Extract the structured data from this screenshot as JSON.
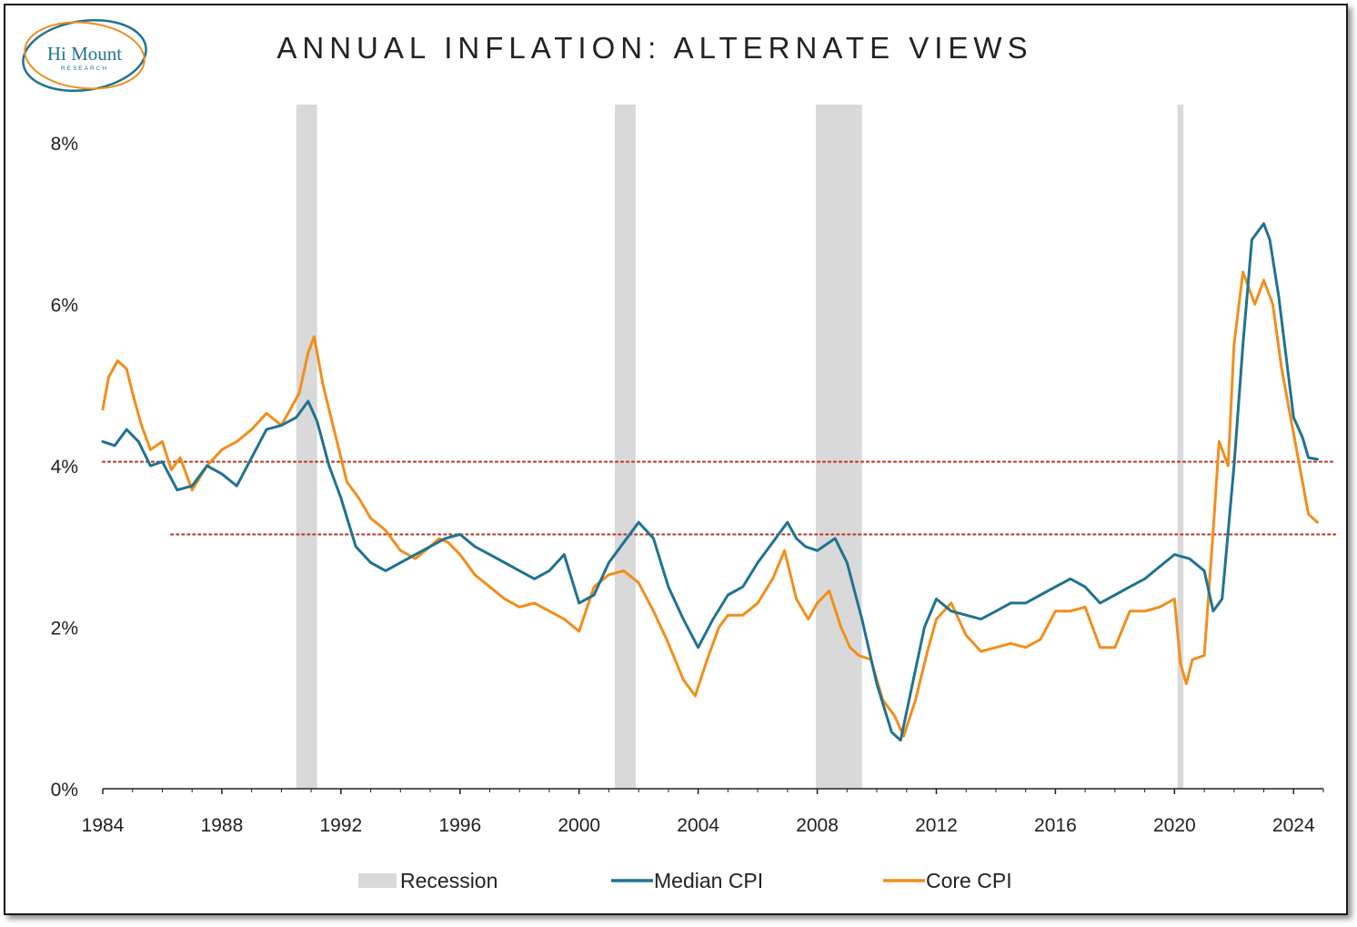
{
  "logo": {
    "name": "Hi Mount",
    "sub": "RESEARCH"
  },
  "chart_data": {
    "type": "line",
    "title": "ANNUAL INFLATION: ALTERNATE VIEWS",
    "xlabel": "",
    "ylabel": "",
    "xlim": [
      1984,
      2025
    ],
    "ylim": [
      0,
      8
    ],
    "x_ticks": [
      "1984",
      "1988",
      "1992",
      "1996",
      "2000",
      "2004",
      "2008",
      "2012",
      "2016",
      "2020",
      "2024"
    ],
    "y_ticks": [
      "0%",
      "2%",
      "4%",
      "6%",
      "8%"
    ],
    "y_tick_values": [
      0,
      2,
      4,
      6,
      8
    ],
    "grid": false,
    "legend_position": "bottom",
    "recessions": [
      [
        1990.5,
        1991.2
      ],
      [
        2001.2,
        2001.9
      ],
      [
        2007.95,
        2009.5
      ],
      [
        2020.1,
        2020.3
      ]
    ],
    "reference_lines": [
      {
        "x": [
          1986.3,
          2025.4
        ],
        "y": [
          3.15,
          3.15
        ],
        "color": "#c0392b",
        "style": "dotted"
      },
      {
        "x": [
          1984,
          2025.4
        ],
        "y": [
          4.05,
          4.05
        ],
        "color": "#c0392b",
        "style": "dotted"
      }
    ],
    "legend": [
      {
        "label": "Recession",
        "kind": "band",
        "color": "#d9d9d9"
      },
      {
        "label": "Median CPI",
        "kind": "line",
        "color": "#1f7391"
      },
      {
        "label": "Core CPI",
        "kind": "line",
        "color": "#f28e1c"
      }
    ],
    "series": [
      {
        "name": "Median CPI",
        "color": "#1f7391",
        "x": [
          1984.0,
          1984.4,
          1984.8,
          1985.2,
          1985.6,
          1986.0,
          1986.5,
          1987.0,
          1987.5,
          1988.0,
          1988.5,
          1989.0,
          1989.5,
          1990.0,
          1990.5,
          1990.9,
          1991.2,
          1991.6,
          1992.0,
          1992.5,
          1993.0,
          1993.5,
          1994.0,
          1994.5,
          1995.0,
          1995.5,
          1996.0,
          1996.5,
          1997.0,
          1997.5,
          1998.0,
          1998.5,
          1999.0,
          1999.5,
          2000.0,
          2000.5,
          2001.0,
          2001.5,
          2002.0,
          2002.5,
          2003.0,
          2003.5,
          2004.0,
          2004.5,
          2005.0,
          2005.5,
          2006.0,
          2006.5,
          2007.0,
          2007.3,
          2007.6,
          2008.0,
          2008.6,
          2009.0,
          2009.5,
          2010.0,
          2010.5,
          2010.8,
          2011.2,
          2011.6,
          2012.0,
          2012.5,
          2013.0,
          2013.5,
          2014.0,
          2014.5,
          2015.0,
          2015.5,
          2016.0,
          2016.5,
          2017.0,
          2017.5,
          2018.0,
          2018.5,
          2019.0,
          2019.5,
          2020.0,
          2020.5,
          2021.0,
          2021.3,
          2021.6,
          2022.0,
          2022.3,
          2022.6,
          2023.0,
          2023.2,
          2023.5,
          2023.8,
          2024.0,
          2024.3,
          2024.5,
          2024.8
        ],
        "values": [
          4.3,
          4.25,
          4.45,
          4.3,
          4.0,
          4.05,
          3.7,
          3.75,
          4.0,
          3.9,
          3.75,
          4.1,
          4.45,
          4.5,
          4.6,
          4.8,
          4.55,
          4.0,
          3.6,
          3.0,
          2.8,
          2.7,
          2.8,
          2.9,
          3.0,
          3.1,
          3.15,
          3.0,
          2.9,
          2.8,
          2.7,
          2.6,
          2.7,
          2.9,
          2.3,
          2.4,
          2.8,
          3.05,
          3.3,
          3.1,
          2.5,
          2.1,
          1.75,
          2.1,
          2.4,
          2.5,
          2.8,
          3.05,
          3.3,
          3.1,
          3.0,
          2.95,
          3.1,
          2.8,
          2.1,
          1.3,
          0.7,
          0.6,
          1.3,
          2.0,
          2.35,
          2.2,
          2.15,
          2.1,
          2.2,
          2.3,
          2.3,
          2.4,
          2.5,
          2.6,
          2.5,
          2.3,
          2.4,
          2.5,
          2.6,
          2.75,
          2.9,
          2.85,
          2.7,
          2.2,
          2.35,
          4.0,
          5.5,
          6.8,
          7.0,
          6.8,
          6.1,
          5.2,
          4.6,
          4.35,
          4.1,
          4.08
        ]
      },
      {
        "name": "Core CPI",
        "color": "#f28e1c",
        "x": [
          1984.0,
          1984.2,
          1984.5,
          1984.8,
          1985.0,
          1985.3,
          1985.6,
          1986.0,
          1986.3,
          1986.6,
          1987.0,
          1987.5,
          1988.0,
          1988.5,
          1989.0,
          1989.5,
          1990.0,
          1990.3,
          1990.6,
          1990.9,
          1991.1,
          1991.4,
          1991.8,
          1992.2,
          1992.6,
          1993.0,
          1993.5,
          1994.0,
          1994.5,
          1995.0,
          1995.3,
          1995.6,
          1996.0,
          1996.5,
          1997.0,
          1997.5,
          1998.0,
          1998.5,
          1999.0,
          1999.5,
          2000.0,
          2000.5,
          2001.0,
          2001.5,
          2002.0,
          2002.5,
          2003.0,
          2003.5,
          2003.9,
          2004.3,
          2004.7,
          2005.0,
          2005.5,
          2006.0,
          2006.5,
          2006.9,
          2007.3,
          2007.7,
          2008.0,
          2008.4,
          2008.8,
          2009.1,
          2009.4,
          2009.8,
          2010.2,
          2010.6,
          2010.9,
          2011.3,
          2011.7,
          2012.0,
          2012.5,
          2013.0,
          2013.5,
          2014.0,
          2014.5,
          2015.0,
          2015.5,
          2016.0,
          2016.5,
          2017.0,
          2017.5,
          2018.0,
          2018.5,
          2019.0,
          2019.5,
          2020.0,
          2020.2,
          2020.4,
          2020.6,
          2021.0,
          2021.3,
          2021.5,
          2021.8,
          2022.0,
          2022.3,
          2022.7,
          2023.0,
          2023.3,
          2023.6,
          2023.9,
          2024.2,
          2024.5,
          2024.8
        ],
        "values": [
          4.7,
          5.1,
          5.3,
          5.2,
          4.9,
          4.5,
          4.2,
          4.3,
          3.95,
          4.1,
          3.7,
          4.0,
          4.2,
          4.3,
          4.45,
          4.65,
          4.5,
          4.7,
          4.9,
          5.4,
          5.6,
          5.0,
          4.4,
          3.8,
          3.6,
          3.35,
          3.2,
          2.95,
          2.85,
          3.0,
          3.1,
          3.05,
          2.9,
          2.65,
          2.5,
          2.35,
          2.25,
          2.3,
          2.2,
          2.1,
          1.95,
          2.5,
          2.65,
          2.7,
          2.55,
          2.2,
          1.8,
          1.35,
          1.15,
          1.6,
          2.0,
          2.15,
          2.15,
          2.3,
          2.6,
          2.95,
          2.35,
          2.1,
          2.3,
          2.45,
          2.0,
          1.75,
          1.65,
          1.6,
          1.1,
          0.9,
          0.65,
          1.1,
          1.7,
          2.1,
          2.3,
          1.9,
          1.7,
          1.75,
          1.8,
          1.75,
          1.85,
          2.2,
          2.2,
          2.25,
          1.75,
          1.75,
          2.2,
          2.2,
          2.25,
          2.35,
          1.55,
          1.3,
          1.6,
          1.65,
          3.2,
          4.3,
          4.0,
          5.5,
          6.4,
          6.0,
          6.3,
          6.0,
          5.2,
          4.6,
          4.0,
          3.4,
          3.3
        ]
      }
    ]
  }
}
